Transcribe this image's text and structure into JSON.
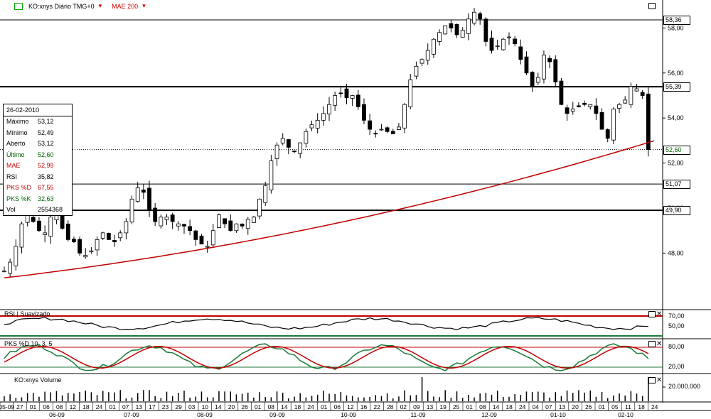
{
  "header": {
    "symbol_label": "KO:xnys Diário TMG+0",
    "indicator_label": "MAE 200"
  },
  "info_panel": {
    "date": "26-02-2010",
    "rows": [
      {
        "label": "Máximo",
        "value": "53,12",
        "color": "#000000"
      },
      {
        "label": "Mínimo",
        "value": "52,49",
        "color": "#000000"
      },
      {
        "label": "Aberto",
        "value": "53,12",
        "color": "#000000"
      },
      {
        "label": "Último",
        "value": "52,60",
        "color": "#006400"
      },
      {
        "label": "MAE",
        "value": "52,99",
        "color": "#c00000"
      },
      {
        "label": "RSI",
        "value": "35,82",
        "color": "#000000"
      },
      {
        "label": "PKS %D",
        "value": "67,55",
        "color": "#c00000"
      },
      {
        "label": "PKS %K",
        "value": "32,63",
        "color": "#006400"
      },
      {
        "label": "Vol",
        "value": "2554368",
        "color": "#000000"
      }
    ]
  },
  "rsi_panel": {
    "title": "RSI | Suavizado",
    "ticks": [
      "70,00",
      "50,00"
    ]
  },
  "stoch_panel": {
    "title": "PKS %D 10, 3, 5",
    "ticks": [
      "80,00",
      "20,00"
    ]
  },
  "volume_panel": {
    "title": "KO:xnys Volume",
    "tick": "20.000.000"
  },
  "colors": {
    "candle": "#000000",
    "mae": "#c00000",
    "pksd": "#c00000",
    "pksk": "#1a7a3a",
    "hline": "#000000"
  },
  "chart_data": {
    "type": "candlestick",
    "symbol": "KO:xnys",
    "y_ticks": [
      58.0,
      56.0,
      54.0,
      52.0,
      50.0,
      48.0
    ],
    "y_tick_labels": [
      "58,00",
      "56,00",
      "54,00",
      "52,00",
      "51,07",
      "49,90",
      "48,00"
    ],
    "horizontal_levels": [
      {
        "value": 58.36,
        "label": "58,36"
      },
      {
        "value": 55.39,
        "label": "55,39"
      },
      {
        "value": 51.07,
        "label": "51,07"
      },
      {
        "value": 49.9,
        "label": "49,90"
      }
    ],
    "last_price": {
      "value": 52.6,
      "label": "52,60"
    },
    "x_day_labels": [
      "05-09",
      "27",
      "01",
      "06",
      "08",
      "12",
      "18",
      "24",
      "01",
      "07",
      "13",
      "17",
      "23",
      "29",
      "03",
      "10",
      "14",
      "20",
      "26",
      "01",
      "08",
      "14",
      "18",
      "24",
      "01",
      "06",
      "12",
      "16",
      "22",
      "28",
      "02",
      "09",
      "13",
      "19",
      "25",
      "01",
      "08",
      "14",
      "18",
      "24",
      "04",
      "07",
      "13",
      "20",
      "26",
      "01",
      "05",
      "11",
      "18",
      "24"
    ],
    "x_month_labels": [
      "06-09",
      "07-09",
      "08-09",
      "09-09",
      "10-09",
      "11-09",
      "12-09",
      "01-10",
      "02-10"
    ],
    "closes_approx": [
      47.2,
      47.6,
      48.3,
      49.3,
      49.7,
      49.4,
      49.0,
      48.9,
      49.6,
      49.7,
      49.1,
      48.6,
      48.5,
      48.0,
      47.9,
      48.1,
      48.6,
      48.9,
      48.6,
      48.5,
      48.9,
      49.4,
      50.4,
      50.9,
      50.7,
      49.9,
      49.4,
      49.6,
      49.6,
      49.4,
      49.3,
      49.2,
      49.0,
      48.6,
      48.4,
      48.3,
      49.0,
      49.7,
      49.3,
      49.0,
      49.3,
      49.2,
      49.5,
      49.6,
      50.4,
      51.0,
      52.1,
      52.8,
      53.1,
      52.7,
      52.5,
      52.9,
      53.4,
      53.7,
      53.9,
      54.2,
      54.6,
      55.0,
      55.1,
      54.9,
      55.0,
      54.5,
      53.9,
      53.5,
      53.3,
      53.5,
      53.4,
      53.3,
      53.6,
      54.6,
      55.7,
      56.3,
      56.6,
      57.0,
      57.5,
      57.8,
      58.1,
      58.0,
      57.7,
      57.9,
      58.4,
      58.7,
      58.4,
      57.4,
      57.0,
      57.2,
      57.5,
      57.6,
      57.3,
      56.6,
      56.0,
      55.4,
      55.8,
      56.8,
      56.5,
      55.6,
      54.6,
      54.2,
      54.4,
      54.5,
      54.6,
      54.6,
      54.2,
      53.5,
      53.1,
      54.4,
      54.6,
      54.8,
      55.4,
      55.3,
      55.0,
      52.6
    ],
    "mae_200": {
      "start": 46.9,
      "end": 52.99
    }
  }
}
